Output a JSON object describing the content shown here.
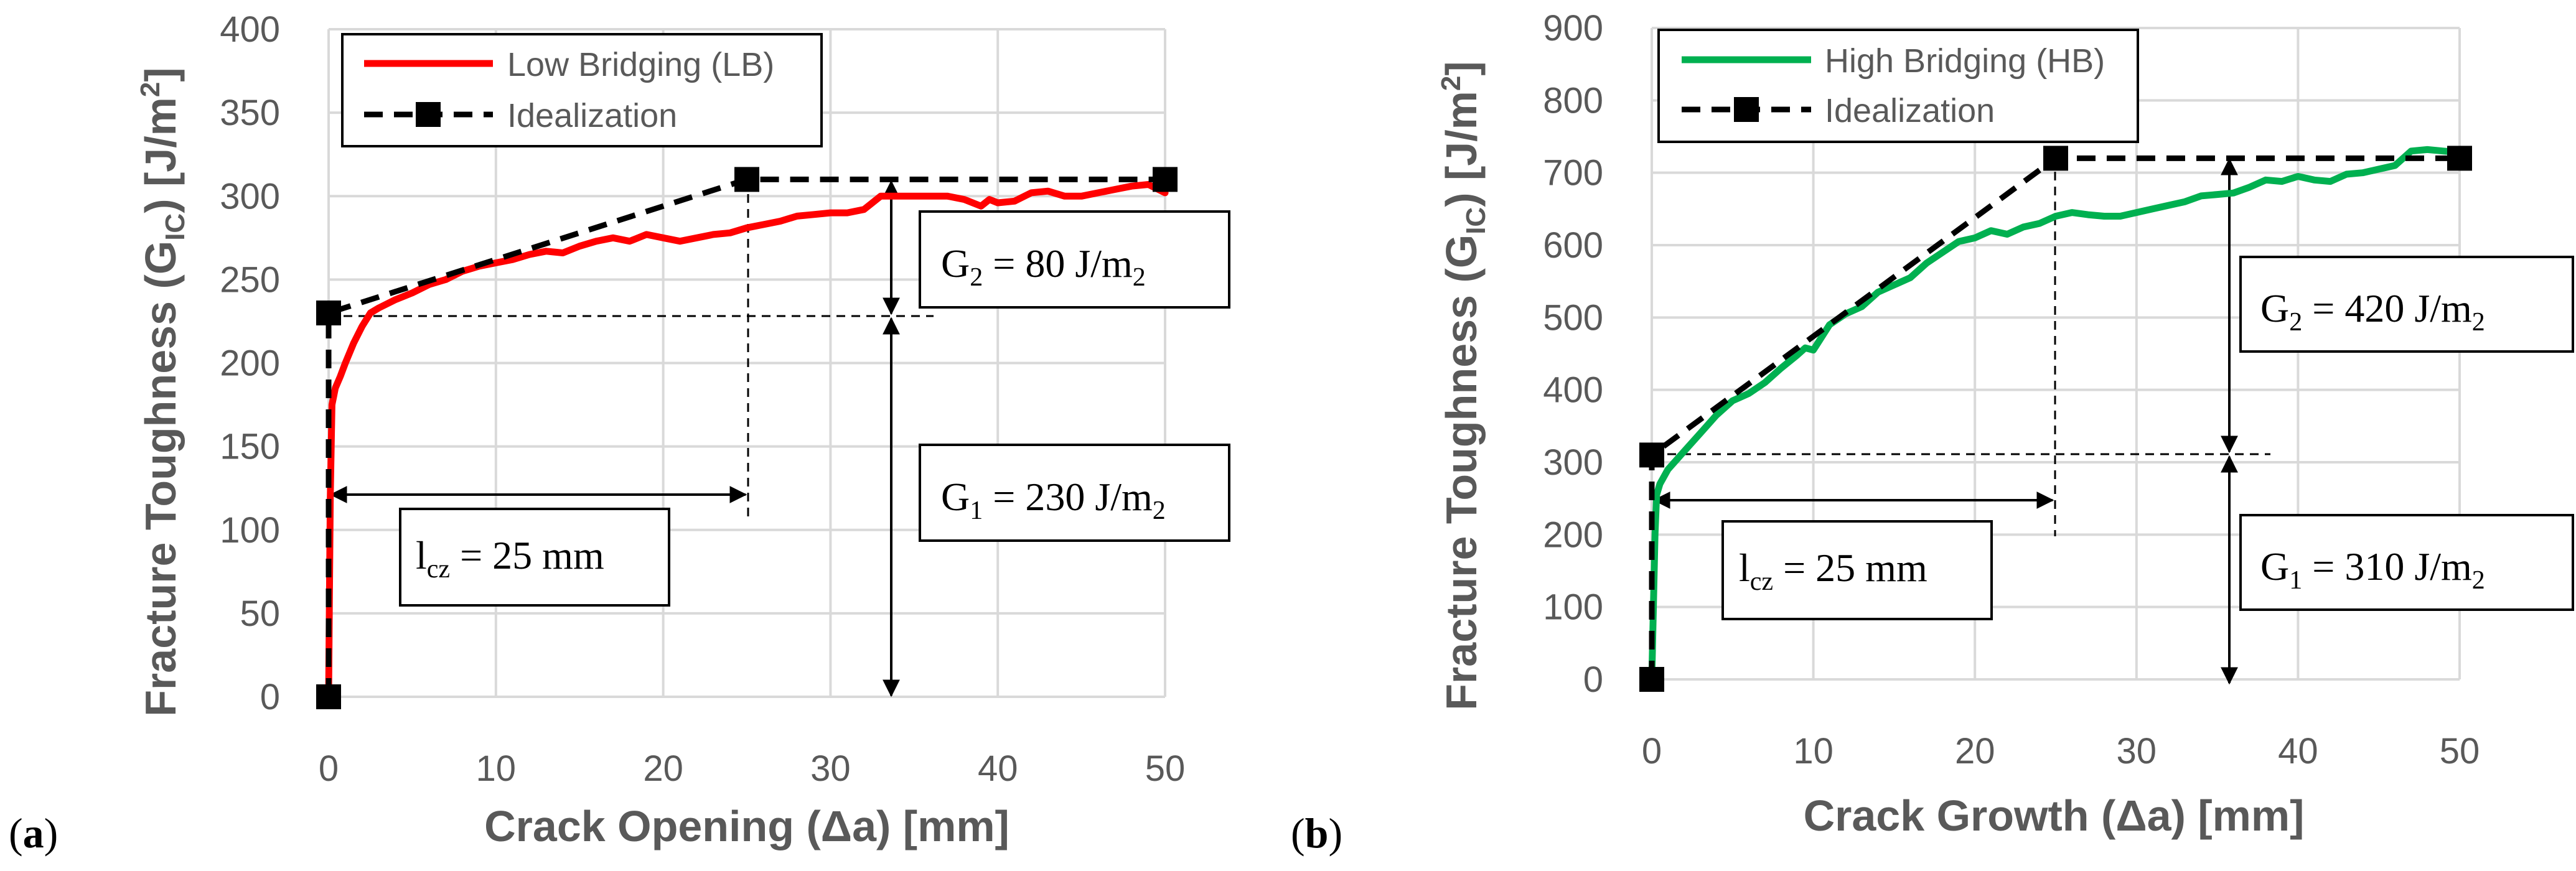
{
  "chart_data": [
    {
      "type": "line",
      "panel_label": "a",
      "xlabel": "Crack Opening (Δa) [mm]",
      "ylabel": {
        "prefix": "Fracture Toughness (G",
        "sub": "IC",
        "mid": ") [J/m",
        "sup": "2",
        "suffix": "]"
      },
      "xlim": [
        0,
        50
      ],
      "ylim": [
        0,
        400
      ],
      "xticks": [
        "0",
        "10",
        "20",
        "30",
        "40",
        "50"
      ],
      "yticks": [
        "0",
        "50",
        "100",
        "150",
        "200",
        "250",
        "300",
        "350",
        "400"
      ],
      "series": [
        {
          "name": "Low Bridging (LB)",
          "color": "#ff0000",
          "x": [
            0,
            0.05,
            0.1,
            0.2,
            0.4,
            0.7,
            1,
            1.5,
            2,
            2.5,
            3,
            4,
            5,
            6,
            7,
            8,
            9,
            10,
            11,
            12,
            13,
            14,
            15,
            16,
            17,
            18,
            19,
            20,
            21,
            22,
            23,
            24,
            25,
            26,
            27,
            28,
            29,
            30,
            31,
            32,
            33,
            34,
            35,
            36,
            37,
            38,
            39,
            39.5,
            40,
            41,
            42,
            43,
            44,
            45,
            46,
            47,
            48,
            49,
            50
          ],
          "y": [
            0,
            60,
            120,
            175,
            185,
            192,
            200,
            212,
            222,
            230,
            233,
            238,
            242,
            247,
            250,
            255,
            258,
            260,
            262,
            265,
            267,
            266,
            270,
            273,
            275,
            273,
            277,
            275,
            273,
            275,
            277,
            278,
            281,
            283,
            285,
            288,
            289,
            290,
            290,
            292,
            300,
            300,
            300,
            300,
            300,
            298,
            294,
            298,
            296,
            297,
            302,
            303,
            300,
            300,
            302,
            304,
            306,
            307,
            302
          ]
        },
        {
          "name": "Idealization",
          "color": "#000000",
          "x": [
            0,
            0,
            25,
            50
          ],
          "y": [
            0,
            230,
            310,
            310
          ]
        }
      ],
      "annotations": {
        "g2": {
          "pre": "G",
          "sub": "2",
          "mid": " = 80 J/m",
          "sub2": "2"
        },
        "g1": {
          "pre": "G",
          "sub": "1",
          "mid": " = 230 J/m",
          "sub2": "2"
        },
        "lcz": {
          "pre": "l",
          "sub": "cz",
          "mid": " = 25 mm"
        }
      }
    },
    {
      "type": "line",
      "panel_label": "b",
      "xlabel": "Crack Growth (Δa) [mm]",
      "ylabel": {
        "prefix": "Fracture Toughness (G",
        "sub": "IC",
        "mid": ") [J/m",
        "sup": "2",
        "suffix": "]"
      },
      "xlim": [
        0,
        50
      ],
      "ylim": [
        0,
        900
      ],
      "xticks": [
        "0",
        "10",
        "20",
        "30",
        "40",
        "50"
      ],
      "yticks": [
        "0",
        "100",
        "200",
        "300",
        "400",
        "500",
        "600",
        "700",
        "800",
        "900"
      ],
      "series": [
        {
          "name": "High Bridging (HB)",
          "color": "#00b050",
          "x": [
            0,
            0.1,
            0.2,
            0.3,
            0.5,
            1,
            2,
            3,
            4,
            5,
            6,
            7,
            8,
            9,
            9.5,
            10,
            11,
            12,
            13,
            14,
            15,
            16,
            17,
            18,
            19,
            20,
            21,
            22,
            23,
            24,
            25,
            26,
            27,
            28,
            29,
            30,
            31,
            32,
            33,
            34,
            35,
            36,
            37,
            38,
            39,
            40,
            41,
            42,
            43,
            44,
            45,
            46,
            47,
            48,
            49,
            50
          ],
          "y": [
            0,
            100,
            200,
            255,
            270,
            290,
            315,
            340,
            365,
            385,
            395,
            410,
            430,
            448,
            458,
            455,
            490,
            505,
            515,
            535,
            545,
            555,
            575,
            590,
            605,
            610,
            620,
            615,
            625,
            630,
            640,
            645,
            642,
            640,
            640,
            645,
            650,
            655,
            660,
            668,
            670,
            672,
            680,
            690,
            688,
            695,
            690,
            688,
            698,
            700,
            705,
            710,
            730,
            732,
            730,
            728
          ]
        },
        {
          "name": "Idealization",
          "color": "#000000",
          "x": [
            0,
            0,
            25,
            50
          ],
          "y": [
            0,
            310,
            720,
            720
          ]
        }
      ],
      "annotations": {
        "g2": {
          "pre": "G",
          "sub": "2",
          "mid": " = 420 J/m",
          "sub2": "2"
        },
        "g1": {
          "pre": "G",
          "sub": "1",
          "mid": " = 310 J/m",
          "sub2": "2"
        },
        "lcz": {
          "pre": "l",
          "sub": "cz",
          "mid": " = 25 mm"
        }
      }
    }
  ]
}
